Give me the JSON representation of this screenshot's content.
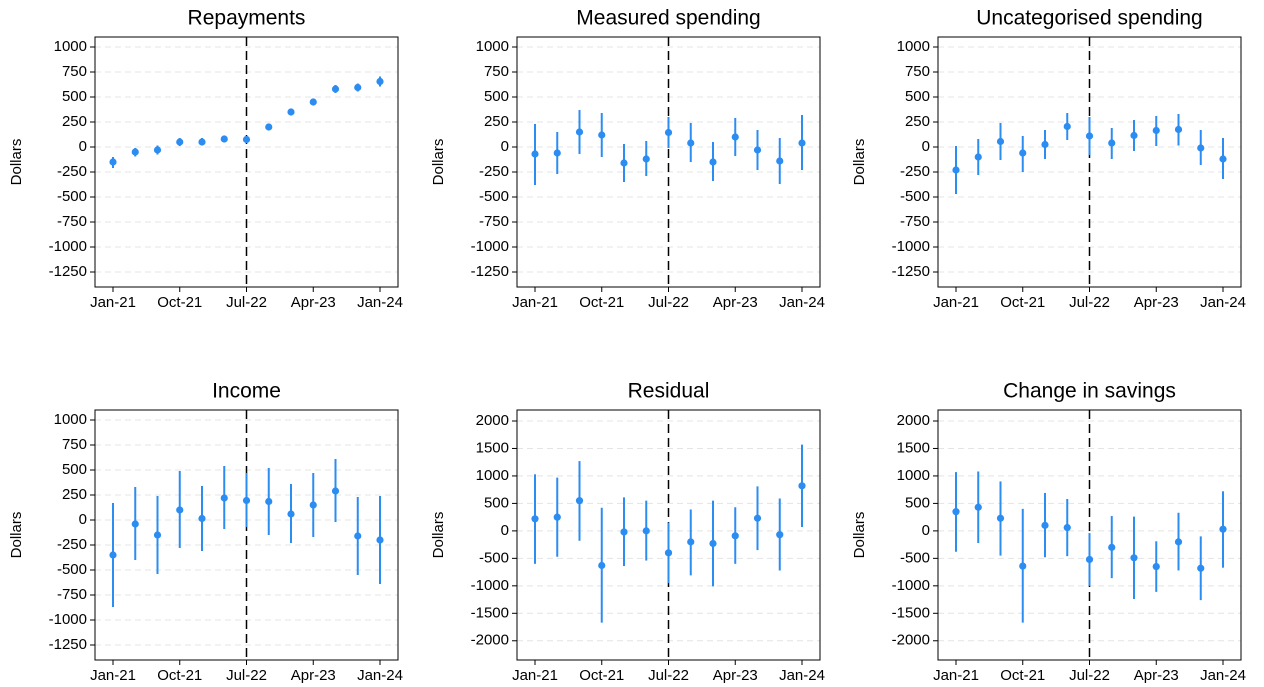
{
  "chart_data": [
    {
      "type": "errorbar",
      "title": "Repayments",
      "y_label": "Dollars",
      "color": "#2b8cf2",
      "grid": true,
      "reference_line": "Jul-22",
      "categories": [
        "Jan-21",
        null,
        null,
        "Oct-21",
        null,
        null,
        "Jul-22",
        null,
        null,
        "Apr-23",
        null,
        null,
        "Jan-24"
      ],
      "values": [
        -150,
        -50,
        -30,
        50,
        50,
        80,
        75,
        200,
        350,
        450,
        580,
        595,
        655
      ],
      "lower": [
        -210,
        -95,
        -75,
        10,
        15,
        50,
        45,
        170,
        315,
        415,
        540,
        555,
        605
      ],
      "upper": [
        -100,
        -10,
        15,
        90,
        90,
        110,
        105,
        230,
        385,
        485,
        620,
        635,
        705
      ],
      "ylim": [
        -1400,
        1100
      ],
      "yticks": [
        1000,
        750,
        500,
        250,
        0,
        -250,
        -500,
        -750,
        -1000,
        -1250
      ]
    },
    {
      "type": "errorbar",
      "title": "Measured spending",
      "y_label": "Dollars",
      "color": "#2b8cf2",
      "grid": true,
      "reference_line": "Jul-22",
      "categories": [
        "Jan-21",
        null,
        null,
        "Oct-21",
        null,
        null,
        "Jul-22",
        null,
        null,
        "Apr-23",
        null,
        null,
        "Jan-24"
      ],
      "values": [
        -70,
        -60,
        150,
        120,
        -160,
        -120,
        145,
        40,
        -150,
        100,
        -30,
        -140,
        40
      ],
      "lower": [
        -380,
        -270,
        -70,
        -100,
        -350,
        -290,
        -10,
        -150,
        -340,
        -90,
        -230,
        -370,
        -230
      ],
      "upper": [
        230,
        150,
        370,
        340,
        30,
        60,
        300,
        240,
        50,
        290,
        170,
        90,
        320
      ],
      "ylim": [
        -1400,
        1100
      ],
      "yticks": [
        1000,
        750,
        500,
        250,
        0,
        -250,
        -500,
        -750,
        -1000,
        -1250
      ]
    },
    {
      "type": "errorbar",
      "title": "Uncategorised spending",
      "y_label": "Dollars",
      "color": "#2b8cf2",
      "grid": true,
      "reference_line": "Jul-22",
      "categories": [
        "Jan-21",
        null,
        null,
        "Oct-21",
        null,
        null,
        "Jul-22",
        null,
        null,
        "Apr-23",
        null,
        null,
        "Jan-24"
      ],
      "values": [
        -230,
        -100,
        55,
        -60,
        25,
        205,
        110,
        40,
        115,
        165,
        175,
        -10,
        -120
      ],
      "lower": [
        -470,
        -280,
        -130,
        -250,
        -120,
        70,
        -80,
        -120,
        -40,
        10,
        15,
        -180,
        -320
      ],
      "upper": [
        10,
        80,
        240,
        110,
        170,
        340,
        300,
        190,
        270,
        310,
        330,
        170,
        90
      ],
      "ylim": [
        -1400,
        1100
      ],
      "yticks": [
        1000,
        750,
        500,
        250,
        0,
        -250,
        -500,
        -750,
        -1000,
        -1250
      ]
    },
    {
      "type": "errorbar",
      "title": "Income",
      "y_label": "Dollars",
      "color": "#2b8cf2",
      "grid": true,
      "reference_line": "Jul-22",
      "categories": [
        "Jan-21",
        null,
        null,
        "Oct-21",
        null,
        null,
        "Jul-22",
        null,
        null,
        "Apr-23",
        null,
        null,
        "Jan-24"
      ],
      "values": [
        -350,
        -40,
        -150,
        100,
        15,
        220,
        195,
        185,
        60,
        150,
        290,
        -160,
        -200
      ],
      "lower": [
        -870,
        -400,
        -540,
        -280,
        -310,
        -90,
        -70,
        -150,
        -230,
        -170,
        -20,
        -550,
        -640
      ],
      "upper": [
        170,
        330,
        240,
        490,
        340,
        540,
        470,
        520,
        360,
        470,
        610,
        230,
        240
      ],
      "ylim": [
        -1400,
        1100
      ],
      "yticks": [
        1000,
        750,
        500,
        250,
        0,
        -250,
        -500,
        -750,
        -1000,
        -1250
      ]
    },
    {
      "type": "errorbar",
      "title": "Residual",
      "y_label": "Dollars",
      "color": "#2b8cf2",
      "grid": true,
      "reference_line": "Jul-22",
      "categories": [
        "Jan-21",
        null,
        null,
        "Oct-21",
        null,
        null,
        "Jul-22",
        null,
        null,
        "Apr-23",
        null,
        null,
        "Jan-24"
      ],
      "values": [
        220,
        250,
        550,
        -630,
        -20,
        0,
        -400,
        -200,
        -230,
        -90,
        230,
        -70,
        820
      ],
      "lower": [
        -600,
        -470,
        -180,
        -1670,
        -640,
        -540,
        -950,
        -810,
        -1010,
        -600,
        -350,
        -720,
        70
      ],
      "upper": [
        1030,
        970,
        1270,
        420,
        610,
        550,
        150,
        390,
        550,
        430,
        810,
        590,
        1570
      ],
      "ylim": [
        -2350,
        2200
      ],
      "yticks": [
        2000,
        1500,
        1000,
        500,
        0,
        -500,
        -1000,
        -1500,
        -2000
      ]
    },
    {
      "type": "errorbar",
      "title": "Change in savings",
      "y_label": "Dollars",
      "color": "#2b8cf2",
      "grid": true,
      "reference_line": "Jul-22",
      "categories": [
        "Jan-21",
        null,
        null,
        "Oct-21",
        null,
        null,
        "Jul-22",
        null,
        null,
        "Apr-23",
        null,
        null,
        "Jan-24"
      ],
      "values": [
        350,
        430,
        230,
        -640,
        100,
        60,
        -520,
        -300,
        -490,
        -650,
        -200,
        -680,
        30
      ],
      "lower": [
        -380,
        -220,
        -450,
        -1670,
        -480,
        -460,
        -1000,
        -860,
        -1240,
        -1110,
        -720,
        -1260,
        -670
      ],
      "upper": [
        1070,
        1080,
        900,
        400,
        690,
        580,
        -40,
        270,
        260,
        -190,
        330,
        -100,
        720
      ],
      "ylim": [
        -2350,
        2200
      ],
      "yticks": [
        2000,
        1500,
        1000,
        500,
        0,
        -500,
        -1000,
        -1500,
        -2000
      ]
    }
  ]
}
